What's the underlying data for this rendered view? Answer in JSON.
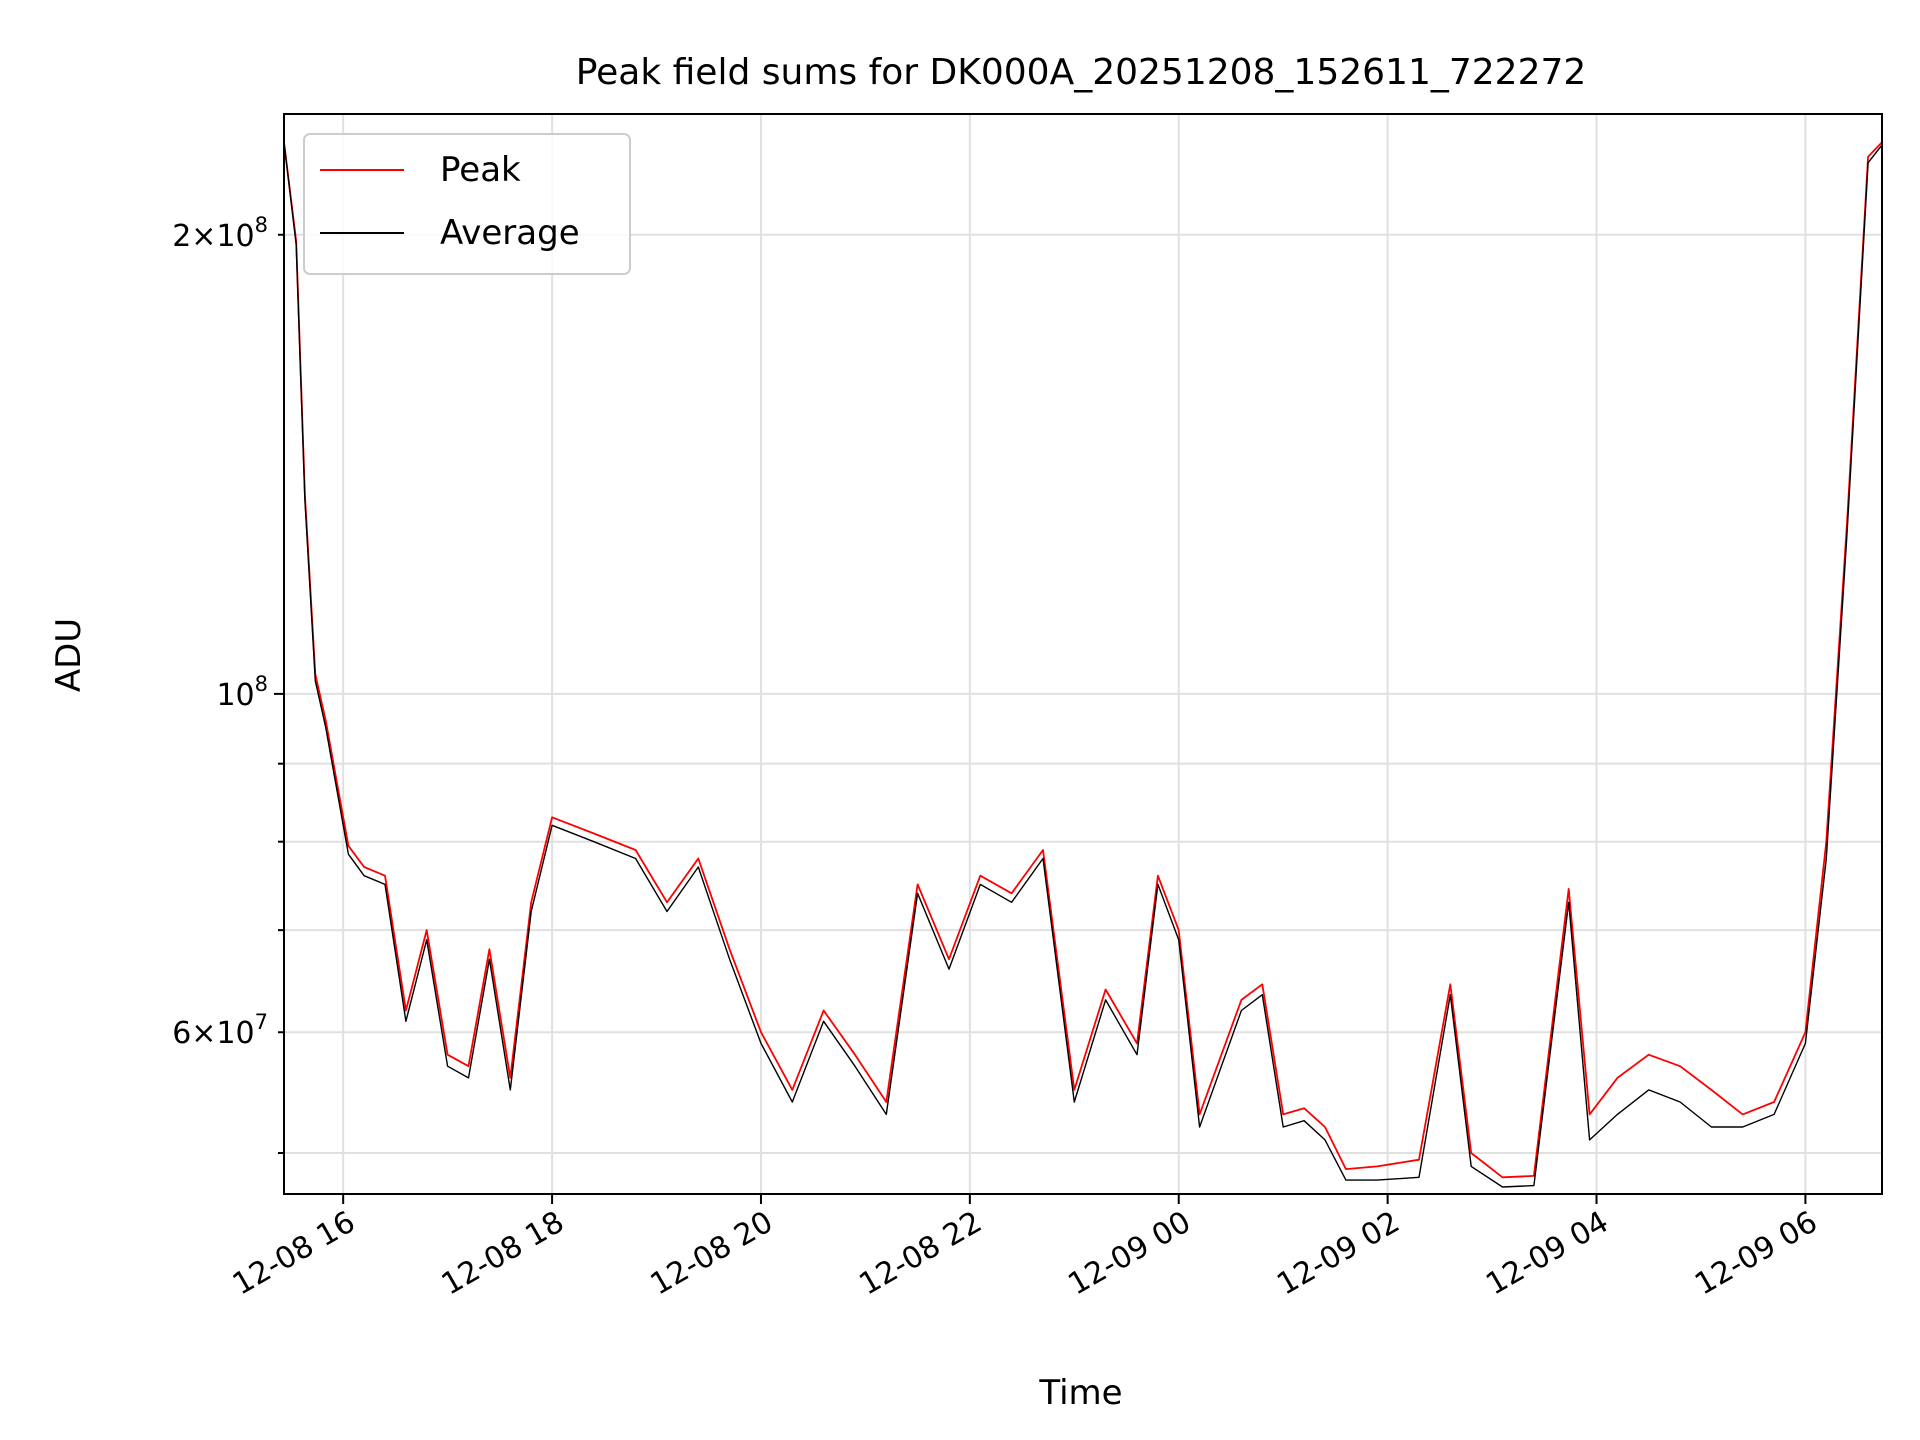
{
  "chart_data": {
    "type": "line",
    "title": "Peak field sums for DK000A_20251208_152611_722272",
    "xlabel": "Time",
    "ylabel": "ADU",
    "yscale": "log",
    "grid": true,
    "legend_position": "top-left",
    "xlim": [
      "2025-12-08 15:26",
      "2025-12-09 06:44"
    ],
    "ylim": [
      47000000,
      240000000
    ],
    "x_ticks": [
      "2025-12-08 16:00",
      "2025-12-08 18:00",
      "2025-12-08 20:00",
      "2025-12-08 22:00",
      "2025-12-09 00:00",
      "2025-12-09 02:00",
      "2025-12-09 04:00",
      "2025-12-09 06:00"
    ],
    "x_tick_labels": [
      "12-08 16",
      "12-08 18",
      "12-08 20",
      "12-08 22",
      "12-09 00",
      "12-09 02",
      "12-09 04",
      "12-09 06"
    ],
    "y_tick_labels": [
      {
        "value": 200000000,
        "mant": "2",
        "exp": "8"
      },
      {
        "value": 100000000,
        "mant": "",
        "exp": "8"
      },
      {
        "value": 60000000,
        "mant": "6",
        "exp": "7"
      }
    ],
    "series": [
      {
        "name": "Peak",
        "color": "#ff0000",
        "x": [
          "2025-12-08 15:26",
          "2025-12-08 15:33",
          "2025-12-08 15:38",
          "2025-12-08 15:44",
          "2025-12-08 15:50",
          "2025-12-08 15:56",
          "2025-12-08 16:03",
          "2025-12-08 16:12",
          "2025-12-08 16:24",
          "2025-12-08 16:36",
          "2025-12-08 16:48",
          "2025-12-08 17:00",
          "2025-12-08 17:12",
          "2025-12-08 17:24",
          "2025-12-08 17:36",
          "2025-12-08 17:48",
          "2025-12-08 18:00",
          "2025-12-08 18:24",
          "2025-12-08 18:48",
          "2025-12-08 19:06",
          "2025-12-08 19:24",
          "2025-12-08 19:42",
          "2025-12-08 20:00",
          "2025-12-08 20:18",
          "2025-12-08 20:36",
          "2025-12-08 20:54",
          "2025-12-08 21:12",
          "2025-12-08 21:30",
          "2025-12-08 21:48",
          "2025-12-08 22:06",
          "2025-12-08 22:24",
          "2025-12-08 22:42",
          "2025-12-08 23:00",
          "2025-12-08 23:18",
          "2025-12-08 23:36",
          "2025-12-08 23:48",
          "2025-12-09 00:00",
          "2025-12-09 00:12",
          "2025-12-09 00:36",
          "2025-12-09 00:48",
          "2025-12-09 01:00",
          "2025-12-09 01:12",
          "2025-12-09 01:24",
          "2025-12-09 01:36",
          "2025-12-09 01:54",
          "2025-12-09 02:18",
          "2025-12-09 02:36",
          "2025-12-09 02:48",
          "2025-12-09 03:06",
          "2025-12-09 03:24",
          "2025-12-09 03:34",
          "2025-12-09 03:44",
          "2025-12-09 03:56",
          "2025-12-09 04:12",
          "2025-12-09 04:30",
          "2025-12-09 04:48",
          "2025-12-09 05:06",
          "2025-12-09 05:24",
          "2025-12-09 05:42",
          "2025-12-09 06:00",
          "2025-12-09 06:12",
          "2025-12-09 06:24",
          "2025-12-09 06:36",
          "2025-12-09 06:44"
        ],
        "y": [
          230000000,
          198000000,
          135000000,
          103000000,
          96000000,
          88000000,
          79500000,
          77000000,
          76000000,
          62000000,
          70000000,
          58000000,
          57000000,
          68000000,
          56000000,
          73000000,
          83000000,
          81000000,
          79000000,
          73000000,
          78000000,
          68000000,
          60000000,
          55000000,
          62000000,
          58000000,
          54000000,
          75000000,
          67000000,
          76000000,
          74000000,
          79000000,
          55000000,
          64000000,
          59000000,
          76000000,
          70000000,
          53000000,
          63000000,
          64500000,
          53000000,
          53500000,
          52000000,
          48800000,
          49000000,
          49500000,
          64500000,
          50000000,
          48200000,
          48300000,
          60000000,
          74500000,
          53000000,
          56000000,
          58000000,
          57000000,
          55000000,
          53000000,
          54000000,
          60000000,
          80000000,
          130000000,
          225000000,
          230000000
        ]
      },
      {
        "name": "Average",
        "color": "#000000",
        "x": [
          "2025-12-08 15:26",
          "2025-12-08 15:33",
          "2025-12-08 15:38",
          "2025-12-08 15:44",
          "2025-12-08 15:50",
          "2025-12-08 15:56",
          "2025-12-08 16:03",
          "2025-12-08 16:12",
          "2025-12-08 16:24",
          "2025-12-08 16:36",
          "2025-12-08 16:48",
          "2025-12-08 17:00",
          "2025-12-08 17:12",
          "2025-12-08 17:24",
          "2025-12-08 17:36",
          "2025-12-08 17:48",
          "2025-12-08 18:00",
          "2025-12-08 18:24",
          "2025-12-08 18:48",
          "2025-12-08 19:06",
          "2025-12-08 19:24",
          "2025-12-08 19:42",
          "2025-12-08 20:00",
          "2025-12-08 20:18",
          "2025-12-08 20:36",
          "2025-12-08 20:54",
          "2025-12-08 21:12",
          "2025-12-08 21:30",
          "2025-12-08 21:48",
          "2025-12-08 22:06",
          "2025-12-08 22:24",
          "2025-12-08 22:42",
          "2025-12-08 23:00",
          "2025-12-08 23:18",
          "2025-12-08 23:36",
          "2025-12-08 23:48",
          "2025-12-09 00:00",
          "2025-12-09 00:12",
          "2025-12-09 00:36",
          "2025-12-09 00:48",
          "2025-12-09 01:00",
          "2025-12-09 01:12",
          "2025-12-09 01:24",
          "2025-12-09 01:36",
          "2025-12-09 01:54",
          "2025-12-09 02:18",
          "2025-12-09 02:36",
          "2025-12-09 02:48",
          "2025-12-09 03:06",
          "2025-12-09 03:24",
          "2025-12-09 03:34",
          "2025-12-09 03:44",
          "2025-12-09 03:56",
          "2025-12-09 04:12",
          "2025-12-09 04:30",
          "2025-12-09 04:48",
          "2025-12-09 05:06",
          "2025-12-09 05:24",
          "2025-12-09 05:42",
          "2025-12-09 06:00",
          "2025-12-09 06:12",
          "2025-12-09 06:24",
          "2025-12-09 06:36",
          "2025-12-09 06:44"
        ],
        "y": [
          230000000,
          197000000,
          134000000,
          102000000,
          95000000,
          87000000,
          78500000,
          76000000,
          75000000,
          61000000,
          69000000,
          57000000,
          56000000,
          67000000,
          55000000,
          72000000,
          82000000,
          80000000,
          78000000,
          72000000,
          77000000,
          67000000,
          59000000,
          54000000,
          61000000,
          57000000,
          53000000,
          74000000,
          66000000,
          75000000,
          73000000,
          78000000,
          54000000,
          63000000,
          58000000,
          75000000,
          69000000,
          52000000,
          62000000,
          63500000,
          52000000,
          52500000,
          51000000,
          48000000,
          48000000,
          48200000,
          63500000,
          49000000,
          47500000,
          47600000,
          59000000,
          73000000,
          51000000,
          53000000,
          55000000,
          54000000,
          52000000,
          52000000,
          53000000,
          59000000,
          78000000,
          128000000,
          223000000,
          229000000
        ]
      }
    ]
  }
}
